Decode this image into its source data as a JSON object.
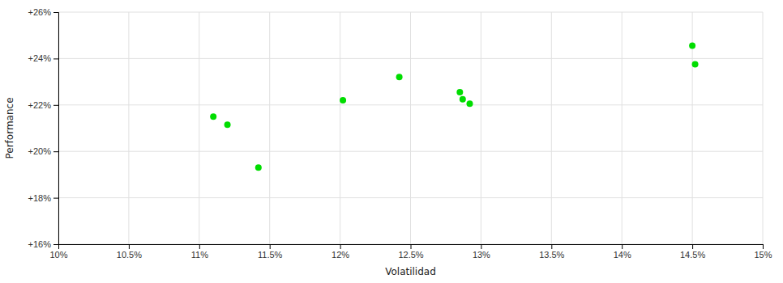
{
  "chart_data": {
    "type": "scatter",
    "xlabel": "Volatilidad",
    "ylabel": "Performance",
    "x": [
      11.1,
      11.2,
      11.42,
      12.02,
      12.42,
      12.85,
      12.87,
      12.92,
      14.5,
      14.52
    ],
    "values": [
      21.5,
      21.15,
      19.3,
      22.2,
      23.2,
      22.55,
      22.25,
      22.05,
      24.55,
      23.75
    ],
    "color": "#00dd00",
    "xlim": [
      10.0,
      15.0
    ],
    "ylim": [
      16.0,
      26.0
    ],
    "xticks": [
      {
        "value": 10.0,
        "label": "10%"
      },
      {
        "value": 10.5,
        "label": "10.5%"
      },
      {
        "value": 11.0,
        "label": "11%"
      },
      {
        "value": 11.5,
        "label": "11.5%"
      },
      {
        "value": 12.0,
        "label": "12%"
      },
      {
        "value": 12.5,
        "label": "12.5%"
      },
      {
        "value": 13.0,
        "label": "13%"
      },
      {
        "value": 13.5,
        "label": "13.5%"
      },
      {
        "value": 14.0,
        "label": "14%"
      },
      {
        "value": 14.5,
        "label": "14.5%"
      },
      {
        "value": 15.0,
        "label": "15%"
      }
    ],
    "yticks": [
      {
        "value": 16.0,
        "label": "+16%"
      },
      {
        "value": 18.0,
        "label": "+18%"
      },
      {
        "value": 20.0,
        "label": "+20%"
      },
      {
        "value": 22.0,
        "label": "+22%"
      },
      {
        "value": 24.0,
        "label": "+24%"
      },
      {
        "value": 26.0,
        "label": "+26%"
      }
    ],
    "grid": true
  }
}
